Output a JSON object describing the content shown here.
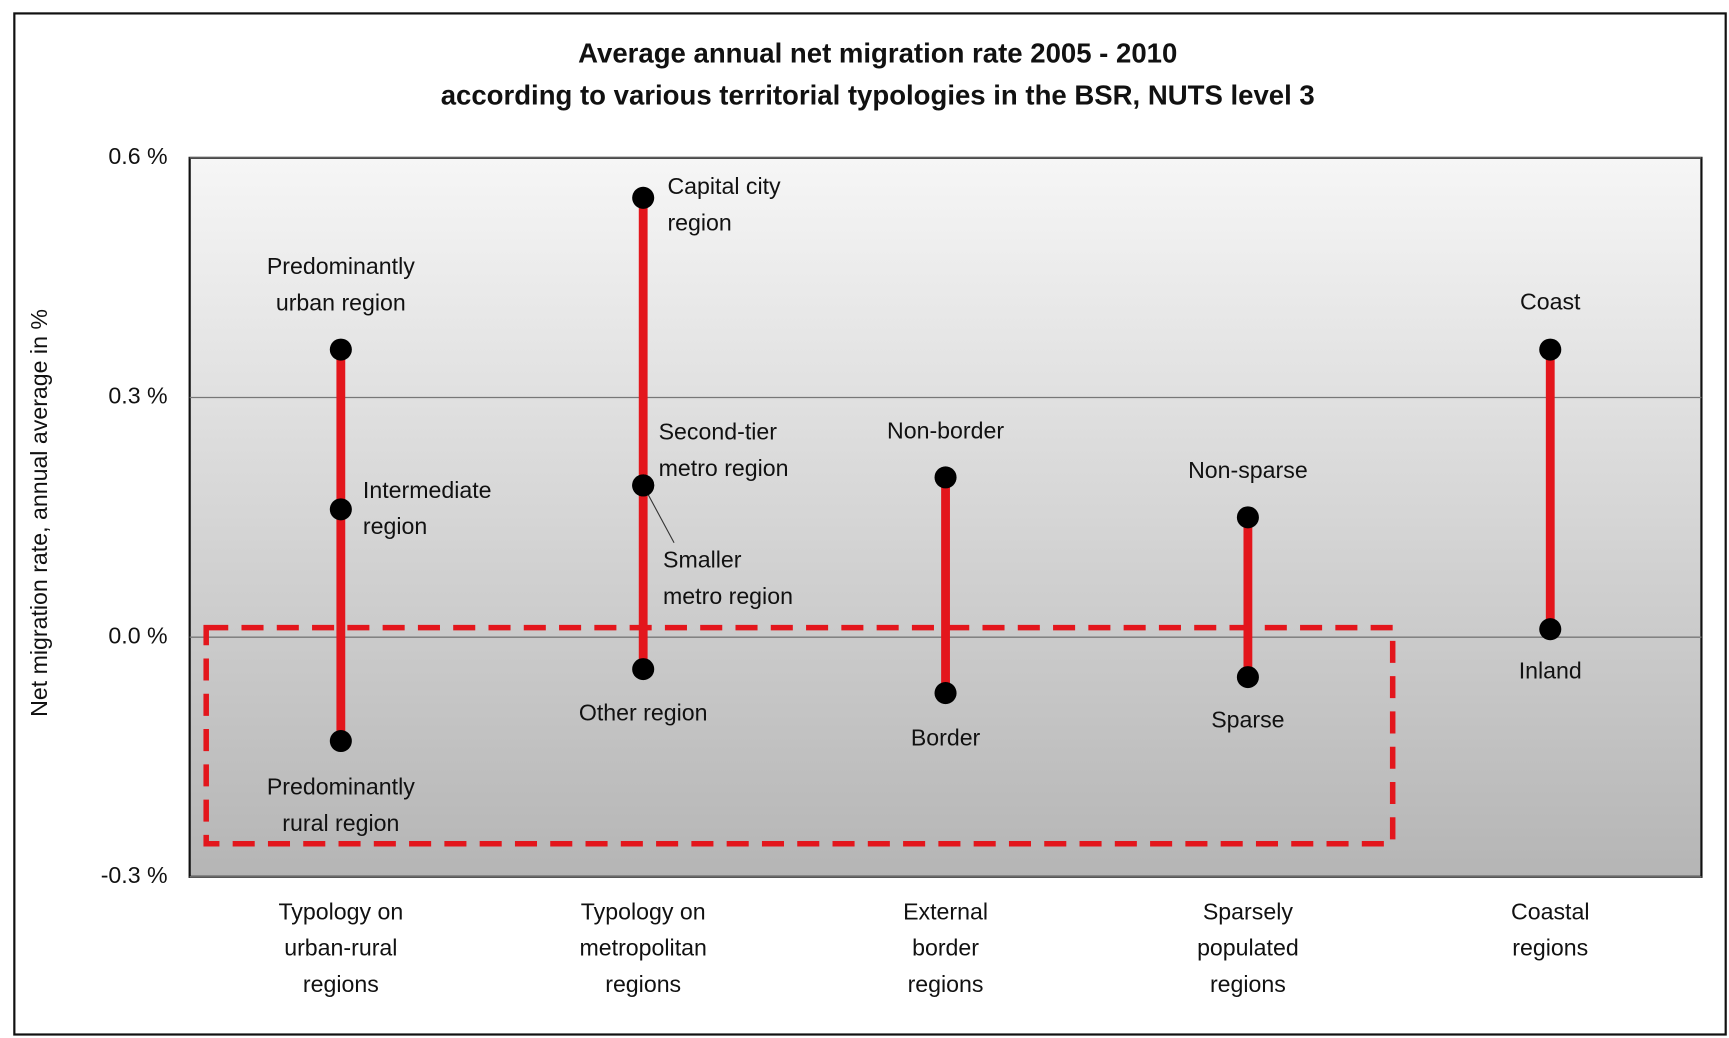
{
  "chart_data": {
    "type": "dot_range",
    "title": [
      "Average annual net migration rate 2005 - 2010",
      "according to various territorial typologies in the BSR, NUTS level 3"
    ],
    "ylabel": "Net migration rate, annual average in %",
    "ylim": [
      -0.3,
      0.6
    ],
    "yticks": [
      {
        "value": -0.3,
        "label": "-0.3 %"
      },
      {
        "value": 0,
        "label": "0.0 %"
      },
      {
        "value": 0.3,
        "label": "0.3 %"
      },
      {
        "value": 0.6,
        "label": "0.6 %"
      }
    ],
    "grid": true,
    "color": "#e3161c",
    "marker_color": "#000000",
    "categories": [
      [
        "Typology on",
        "urban-rural",
        "regions"
      ],
      [
        "Typology on",
        "metropolitan",
        "regions"
      ],
      [
        "External",
        "border",
        "regions"
      ],
      [
        "Sparsely",
        "populated",
        "regions"
      ],
      [
        "Coastal",
        "regions"
      ]
    ],
    "groups": [
      {
        "points": [
          {
            "label": [
              "Predominantly",
              "urban region"
            ],
            "value": 0.36
          },
          {
            "label": [
              "Intermediate",
              "region"
            ],
            "value": 0.16
          },
          {
            "label": [
              "Predominantly",
              "rural region"
            ],
            "value": -0.13
          }
        ]
      },
      {
        "points": [
          {
            "label": [
              "Capital city",
              "region"
            ],
            "value": 0.55
          },
          {
            "label": [
              "Second-tier",
              "metro region"
            ],
            "value": 0.19
          },
          {
            "label": [
              "Smaller",
              "metro region"
            ],
            "value": 0.19
          },
          {
            "label": [
              "Other region"
            ],
            "value": -0.04
          }
        ]
      },
      {
        "points": [
          {
            "label": [
              "Non-border"
            ],
            "value": 0.2
          },
          {
            "label": [
              "Border"
            ],
            "value": -0.07
          }
        ]
      },
      {
        "points": [
          {
            "label": [
              "Non-sparse"
            ],
            "value": 0.15
          },
          {
            "label": [
              "Sparse"
            ],
            "value": -0.05
          }
        ]
      },
      {
        "points": [
          {
            "label": [
              "Coast"
            ],
            "value": 0.36
          },
          {
            "label": [
              "Inland"
            ],
            "value": 0.01
          }
        ]
      }
    ]
  }
}
